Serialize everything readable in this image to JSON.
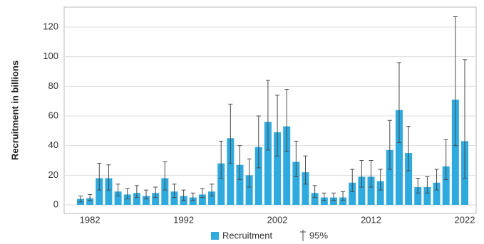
{
  "chart_data": {
    "type": "bar",
    "y_label": "Recruitment in billions",
    "categories": [
      null,
      "1982",
      null,
      null,
      null,
      null,
      null,
      null,
      null,
      null,
      null,
      "1992",
      null,
      null,
      null,
      null,
      null,
      null,
      null,
      null,
      null,
      "2002",
      null,
      null,
      null,
      null,
      null,
      null,
      null,
      null,
      null,
      "2012",
      null,
      null,
      null,
      null,
      null,
      null,
      null,
      null,
      null,
      "2022"
    ],
    "series": [
      {
        "name": "Recruitment",
        "color": "#2eaadf",
        "values": [
          4,
          4.5,
          18,
          18,
          9,
          7,
          8,
          6,
          8,
          18,
          9,
          6,
          5,
          7,
          9,
          28,
          45,
          27,
          20,
          39,
          56,
          49,
          53,
          29,
          22,
          8,
          5,
          5,
          5,
          15,
          19,
          19,
          16,
          37,
          64,
          35,
          12,
          12,
          15,
          26,
          71,
          43
        ],
        "error_name": "95%",
        "error_color": "#4a4a4a",
        "lower": [
          2,
          3,
          10,
          10,
          6,
          4,
          5,
          4,
          5,
          10,
          5,
          3,
          3,
          5,
          6,
          18,
          28,
          17,
          12,
          25,
          37,
          33,
          36,
          19,
          14,
          5,
          3,
          3,
          3,
          9,
          12,
          12,
          10,
          24,
          42,
          23,
          8,
          8,
          10,
          17,
          40,
          18
        ],
        "upper": [
          6,
          7,
          28,
          27,
          14,
          11,
          13,
          10,
          12,
          29,
          14,
          10,
          8,
          11,
          14,
          43,
          68,
          40,
          31,
          60,
          84,
          74,
          78,
          43,
          33,
          13,
          8,
          8,
          9,
          24,
          30,
          30,
          24,
          57,
          96,
          53,
          18,
          19,
          24,
          44,
          127,
          98
        ]
      }
    ],
    "ylim": [
      0,
      132
    ],
    "yticks": [
      0,
      20,
      40,
      60,
      80,
      100,
      120
    ],
    "grid": true
  }
}
